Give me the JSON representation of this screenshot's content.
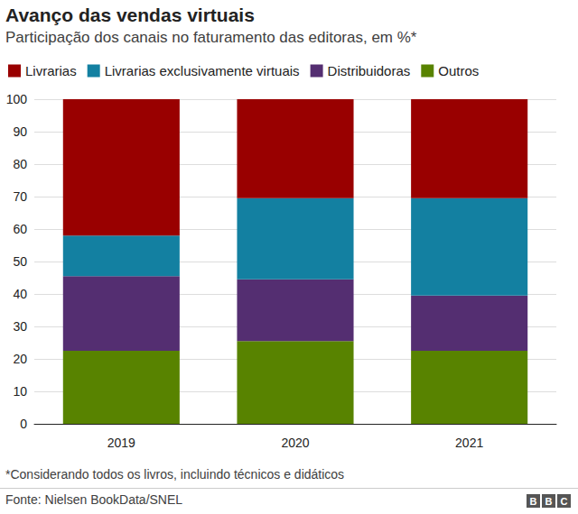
{
  "chart_data": {
    "type": "bar",
    "title": "Avanço das vendas virtuais",
    "subtitle": "Participação dos canais no faturamento das editoras, em %*",
    "footnote": "*Considerando todos os livros, incluindo técnicos e didáticos",
    "source": "Fonte: Nielsen BookData/SNEL",
    "credit": "BBC",
    "categories": [
      "2019",
      "2020",
      "2021"
    ],
    "series": [
      {
        "name": "Livrarias",
        "color": "#990000",
        "values": [
          42,
          30.5,
          30.5
        ]
      },
      {
        "name": "Livrarias exclusivamente virtuais",
        "color": "#1380A1",
        "values": [
          12.5,
          25,
          30
        ]
      },
      {
        "name": "Distribuidoras",
        "color": "#542e71",
        "values": [
          23,
          19,
          17
        ]
      },
      {
        "name": "Outros",
        "color": "#588300",
        "values": [
          22.5,
          25.5,
          22.5
        ]
      }
    ],
    "stacked": true,
    "ylim": [
      0,
      100
    ],
    "yticks": [
      0,
      10,
      20,
      30,
      40,
      50,
      60,
      70,
      80,
      90,
      100
    ],
    "grid": true,
    "legend": "top-left"
  }
}
